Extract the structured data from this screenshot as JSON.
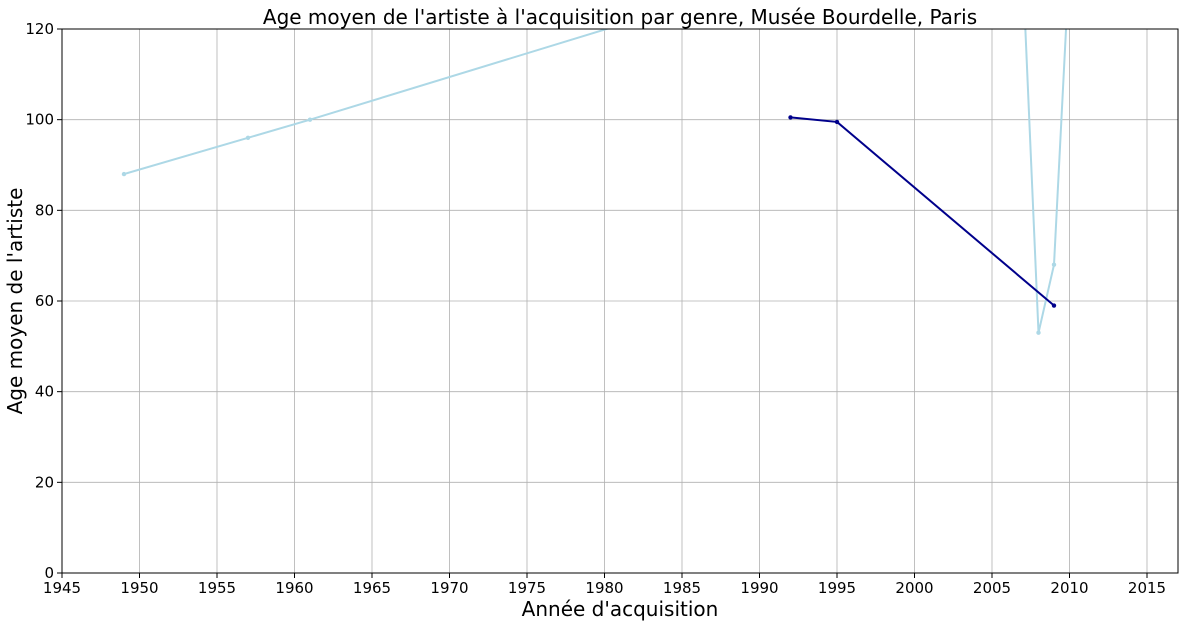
{
  "chart_data": {
    "type": "line",
    "title": "Age moyen de l'artiste à l'acquisition par genre, Musée Bourdelle, Paris",
    "xlabel": "Année d'acquisition",
    "ylabel": "Age moyen de l'artiste",
    "xlim": [
      1945,
      2017
    ],
    "ylim": [
      0,
      120
    ],
    "xticks": [
      1945,
      1950,
      1955,
      1960,
      1965,
      1970,
      1975,
      1980,
      1985,
      1990,
      1995,
      2000,
      2005,
      2010,
      2015
    ],
    "yticks": [
      0,
      20,
      40,
      60,
      80,
      100,
      120
    ],
    "grid": true,
    "series": [
      {
        "color": "#add8e6",
        "points": [
          [
            1949,
            88
          ],
          [
            1957,
            96
          ],
          [
            1961,
            100
          ],
          [
            1983,
            123
          ],
          [
            2007,
            132
          ],
          [
            2008,
            53
          ],
          [
            2009,
            68
          ],
          [
            2010,
            135
          ]
        ]
      },
      {
        "color": "#00008b",
        "points": [
          [
            1992,
            100.5
          ],
          [
            1995,
            99.5
          ],
          [
            2009,
            59
          ]
        ]
      }
    ]
  }
}
